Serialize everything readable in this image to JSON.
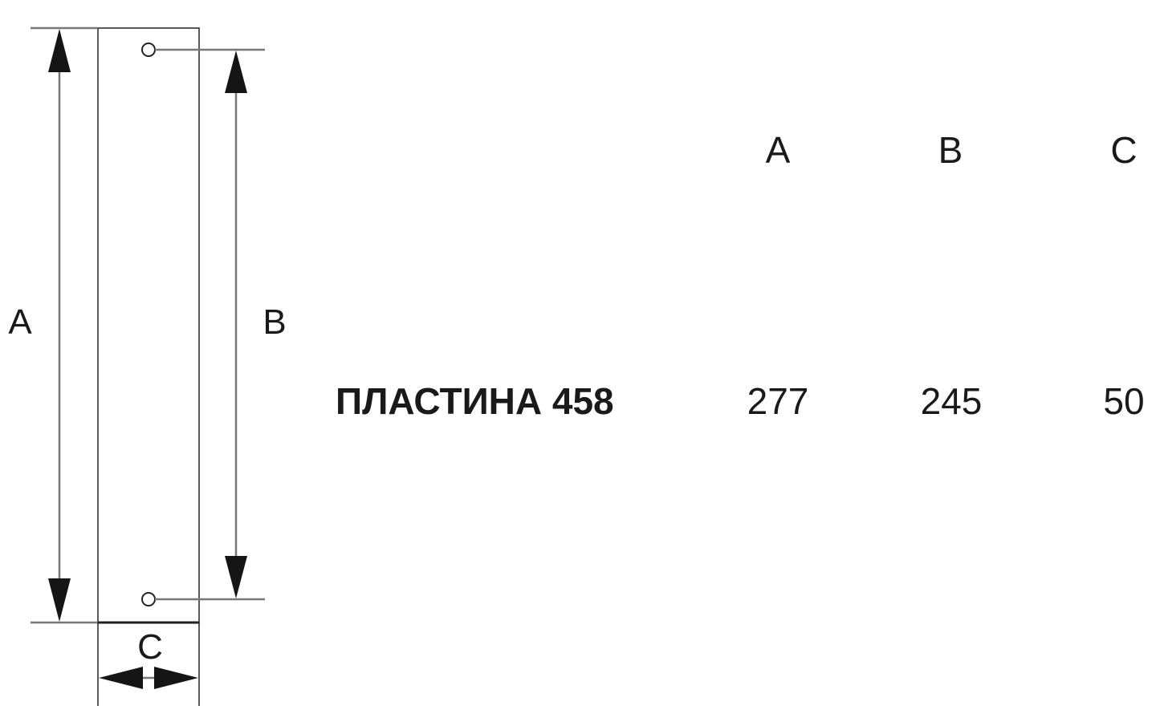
{
  "drawing": {
    "dimension_labels": {
      "a": "A",
      "b": "B",
      "c": "C"
    }
  },
  "table": {
    "headers": [
      "A",
      "B",
      "C"
    ],
    "rows": [
      {
        "name": "ПЛАСТИНА 458",
        "values": [
          "277",
          "245",
          "50"
        ]
      }
    ]
  }
}
